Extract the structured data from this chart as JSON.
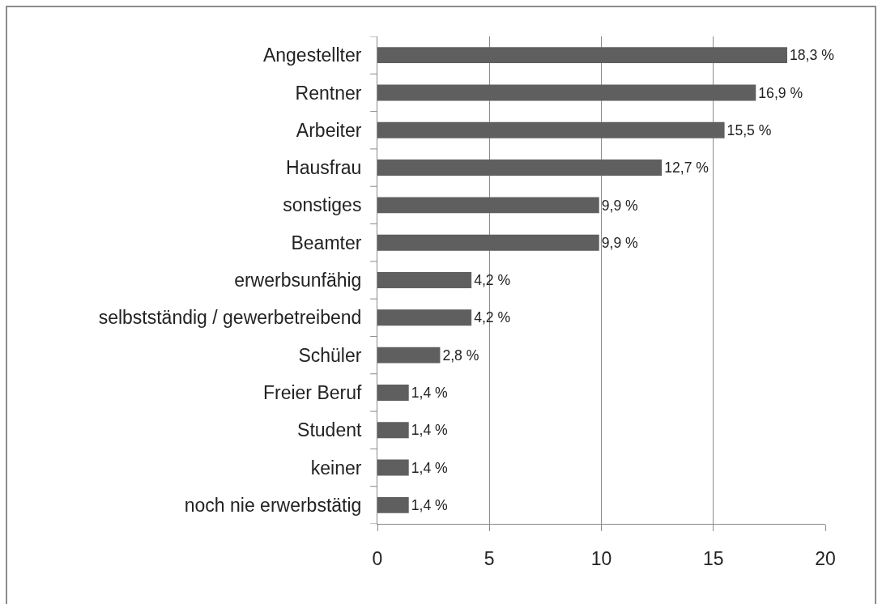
{
  "chart_data": {
    "type": "bar",
    "orientation": "horizontal",
    "categories": [
      "Angestellter",
      "Rentner",
      "Arbeiter",
      "Hausfrau",
      "sonstiges",
      "Beamter",
      "erwerbsunfähig",
      "selbstständig / gewerbetreibend",
      "Schüler",
      "Freier Beruf",
      "Student",
      "keiner",
      "noch nie erwerbstätig"
    ],
    "values": [
      18.3,
      16.9,
      15.5,
      12.7,
      9.9,
      9.9,
      4.2,
      4.2,
      2.8,
      1.4,
      1.4,
      1.4,
      1.4
    ],
    "value_labels": [
      "18,3 %",
      "16,9 %",
      "15,5 %",
      "12,7 %",
      "9,9 %",
      "9,9 %",
      "4,2 %",
      "4,2 %",
      "2,8 %",
      "1,4 %",
      "1,4 %",
      "1,4 %",
      "1,4 %"
    ],
    "color": "#5f5f5f",
    "xlim": [
      0,
      20
    ],
    "xticks": [
      0,
      5,
      10,
      15,
      20
    ],
    "grid": "x"
  }
}
